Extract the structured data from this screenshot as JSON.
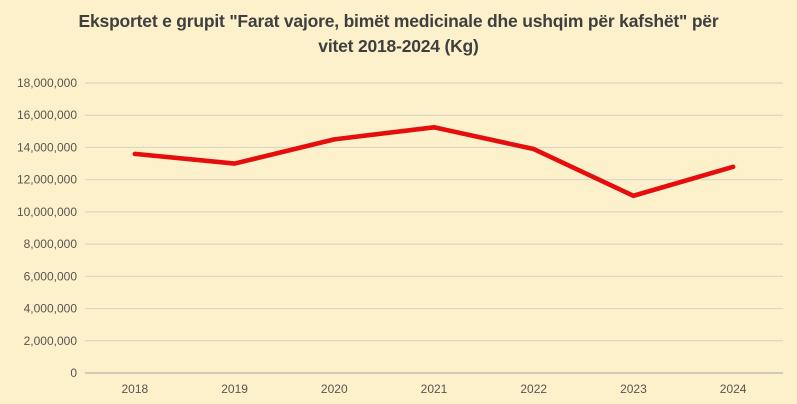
{
  "colors": {
    "background": "#FDF1CB",
    "line": "#E60D0D",
    "grid": "#D9D5C7",
    "axis": "#C2BFB2",
    "tick_text": "#595550",
    "title_text": "#3F3F3F"
  },
  "chart_data": {
    "type": "line",
    "title": "Eksportet e grupit \"Farat vajore, bimët medicinale dhe ushqim për kafshët\" për vitet 2018-2024 (Kg)",
    "categories": [
      "2018",
      "2019",
      "2020",
      "2021",
      "2022",
      "2023",
      "2024"
    ],
    "values": [
      13600000,
      13000000,
      14500000,
      15250000,
      13900000,
      11000000,
      12800000
    ],
    "xlabel": "",
    "ylabel": "",
    "ylim": [
      0,
      18000000
    ],
    "ytick_step": 2000000,
    "ytick_labels": [
      "0",
      "2,000,000",
      "4,000,000",
      "6,000,000",
      "8,000,000",
      "10,000,000",
      "12,000,000",
      "14,000,000",
      "16,000,000",
      "18,000,000"
    ],
    "grid": true,
    "legend": false
  }
}
